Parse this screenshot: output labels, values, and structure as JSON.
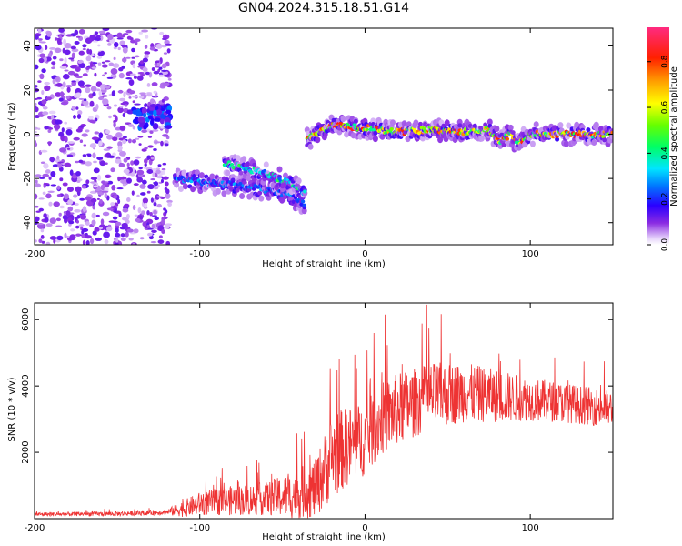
{
  "title": "GN04.2024.315.18.51.G14",
  "colors": {
    "series": "#ee3333",
    "frame": "#000000",
    "background": "#ffffff"
  },
  "chart_data": [
    {
      "type": "heatmap",
      "xlabel": "Height of straight line (km)",
      "ylabel": "Frequency (Hz)",
      "xlim": [
        -200,
        150
      ],
      "ylim": [
        -50,
        48
      ],
      "xticks": [
        -200,
        -100,
        0,
        100
      ],
      "yticks": [
        -40,
        -20,
        0,
        20,
        40
      ],
      "colorbar": {
        "label": "Normalized spectral amplitude",
        "range": [
          0,
          0.95
        ],
        "ticks": [
          0.0,
          0.2,
          0.4,
          0.6,
          0.8
        ],
        "colormap": [
          "#ffffff",
          "#c9a8f0",
          "#7a00e6",
          "#1a00ff",
          "#00e5ff",
          "#00ff66",
          "#ffff00",
          "#ff8000",
          "#ff0000",
          "#ff1493"
        ]
      },
      "features": [
        {
          "region": "noise",
          "x_range": [
            -200,
            -118
          ],
          "freq_range": [
            -50,
            48
          ],
          "amplitude": 0.1
        },
        {
          "region": "tone",
          "x_range": [
            -140,
            -118
          ],
          "freq_center": 8,
          "amplitude": 0.25
        },
        {
          "region": "lower-track",
          "x": [
            -115,
            -95,
            -80,
            -60,
            -45,
            -36
          ],
          "freq": [
            -20,
            -22,
            -23,
            -25,
            -28,
            -32
          ],
          "amplitude": 0.3
        },
        {
          "region": "upper-track",
          "x": [
            -85,
            -75,
            -60,
            -45,
            -36
          ],
          "freq": [
            -13,
            -15,
            -18,
            -22,
            -27
          ],
          "amplitude": 0.45
        },
        {
          "region": "main-tone",
          "x": [
            -35,
            -20,
            0,
            20,
            40,
            60,
            75,
            82,
            88,
            92,
            100,
            120,
            150
          ],
          "freq": [
            -2,
            4,
            3,
            1,
            2,
            1,
            2,
            -3,
            0,
            -4,
            0,
            0,
            0
          ],
          "amplitude": 0.9
        }
      ]
    },
    {
      "type": "line",
      "xlabel": "Height of straight line (km)",
      "ylabel": "SNR (10 * v/v)",
      "xlim": [
        -200,
        150
      ],
      "ylim": [
        0,
        6500
      ],
      "xticks": [
        -200,
        -100,
        0,
        100
      ],
      "yticks": [
        2000,
        4000,
        6000
      ],
      "envelope": {
        "x": [
          -200,
          -150,
          -120,
          -110,
          -100,
          -80,
          -60,
          -45,
          -30,
          -20,
          -10,
          0,
          10,
          20,
          40,
          60,
          80,
          100,
          120,
          150
        ],
        "y": [
          130,
          150,
          200,
          300,
          450,
          550,
          600,
          700,
          900,
          1900,
          2200,
          2400,
          3000,
          3300,
          3700,
          3800,
          3700,
          3600,
          3500,
          3300
        ],
        "spread": [
          60,
          70,
          80,
          250,
          350,
          450,
          500,
          700,
          900,
          1300,
          1200,
          1100,
          1100,
          1100,
          1000,
          900,
          800,
          650,
          600,
          550
        ]
      }
    }
  ]
}
